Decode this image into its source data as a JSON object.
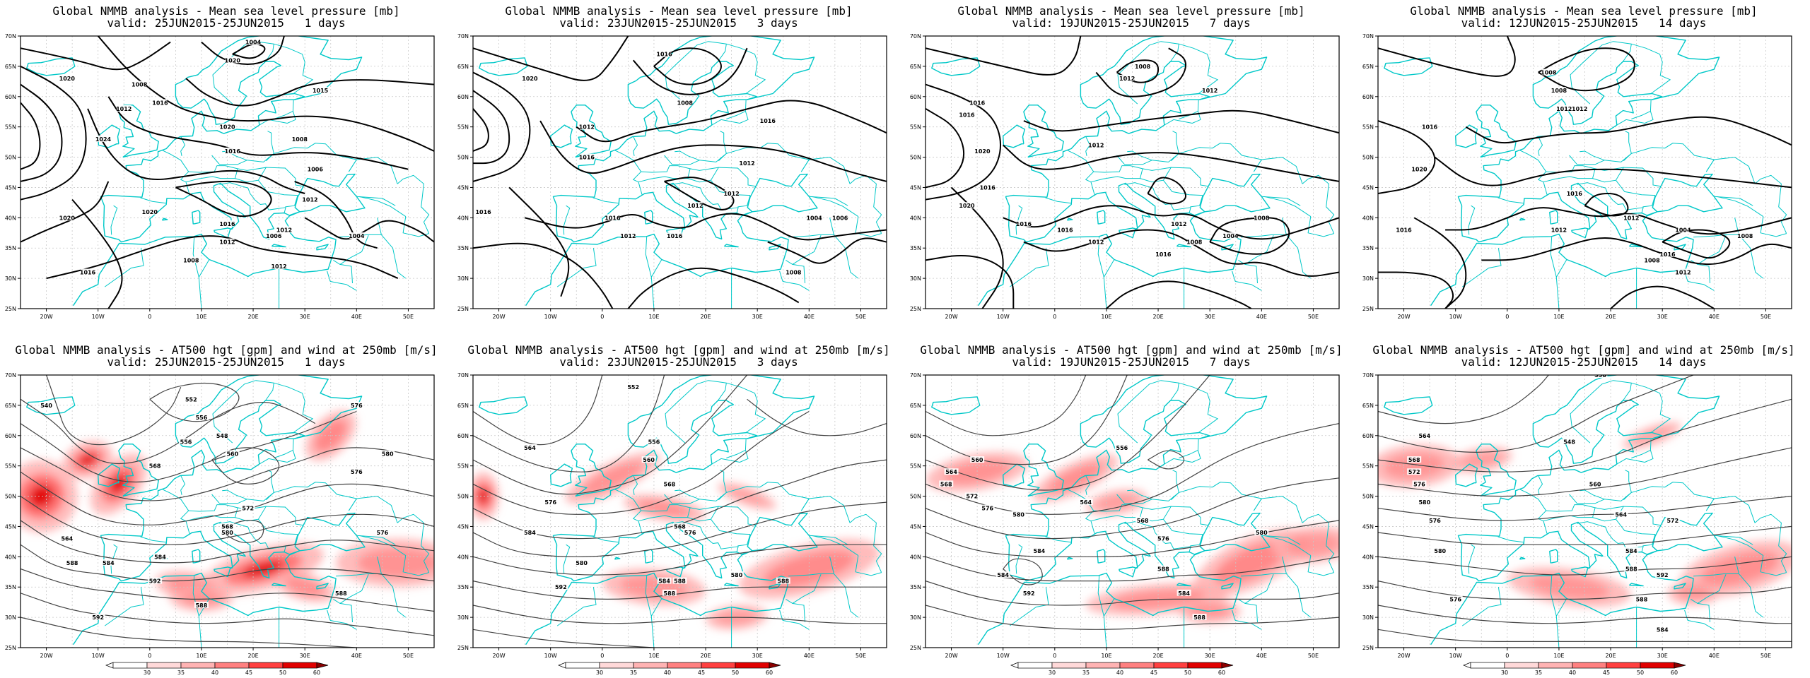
{
  "panels": [
    {
      "title": "Global NMMB analysis - Mean sea level pressure [mb]",
      "valid": "valid: 25JUN2015-25JUN2015   1 days",
      "type": "mslp",
      "labels": [
        "1020",
        "1004",
        "1020",
        "1008",
        "1012",
        "1016",
        "1015",
        "1020",
        "1024",
        "1016",
        "1008",
        "1006",
        "1012",
        "1006",
        "1012",
        "1004",
        "1020",
        "1020",
        "1016",
        "1012",
        "1008",
        "1016",
        "1012"
      ]
    },
    {
      "title": "Global NMMB analysis - Mean sea level pressure [mb]",
      "valid": "valid: 23JUN2015-25JUN2015   3 days",
      "type": "mslp",
      "labels": [
        "1020",
        "1016",
        "1008",
        "1012",
        "1016",
        "1016",
        "1012",
        "1012",
        "1016",
        "1016",
        "1012",
        "1004",
        "1006",
        "1016",
        "1012",
        "1008"
      ]
    },
    {
      "title": "Global NMMB analysis - Mean sea level pressure [mb]",
      "valid": "valid: 19JUN2015-25JUN2015   7 days",
      "type": "mslp",
      "labels": [
        "1016",
        "1012",
        "1016",
        "1008",
        "1012",
        "1020",
        "1012",
        "1016",
        "1020",
        "1016",
        "1016",
        "1012",
        "1004",
        "1008",
        "1016",
        "1008",
        "1012"
      ]
    },
    {
      "title": "Global NMMB analysis - Mean sea level pressure [mb]",
      "valid": "valid: 12JUN2015-25JUN2015   14 days",
      "type": "mslp",
      "labels": [
        "1008",
        "1012",
        "1016",
        "1008",
        "1012",
        "1020",
        "1016",
        "1012",
        "1016",
        "1012",
        "1004",
        "1008",
        "1016",
        "1008",
        "1012"
      ]
    },
    {
      "title": "Global NMMB analysis - AT500 hgt [gpm] and wind at 250mb [m/s]",
      "valid": "valid: 25JUN2015-25JUN2015   1 days",
      "type": "z500",
      "labels": [
        "540",
        "552",
        "556",
        "548",
        "560",
        "576",
        "556",
        "580",
        "568",
        "576",
        "564",
        "572",
        "580",
        "584",
        "588",
        "568",
        "576",
        "584",
        "592",
        "588",
        "592",
        "588"
      ]
    },
    {
      "title": "Global NMMB analysis - AT500 hgt [gpm] and wind at 250mb [m/s]",
      "valid": "valid: 23JUN2015-25JUN2015   3 days",
      "type": "z500",
      "labels": [
        "552",
        "564",
        "556",
        "568",
        "576",
        "580",
        "560",
        "568",
        "576",
        "584",
        "580",
        "588",
        "592",
        "584",
        "588",
        "580",
        "588"
      ]
    },
    {
      "title": "Global NMMB analysis - AT500 hgt [gpm] and wind at 250mb [m/s]",
      "valid": "valid: 19JUN2015-25JUN2015   7 days",
      "type": "z500",
      "labels": [
        "560",
        "564",
        "568",
        "572",
        "576",
        "580",
        "556",
        "564",
        "568",
        "576",
        "580",
        "584",
        "584",
        "588",
        "584",
        "592",
        "588"
      ]
    },
    {
      "title": "Global NMMB analysis - AT500 hgt [gpm] and wind at 250mb [m/s]",
      "valid": "valid: 12JUN2015-25JUN2015   14 days",
      "type": "z500",
      "labels": [
        "556",
        "564",
        "568",
        "572",
        "576",
        "580",
        "548",
        "560",
        "564",
        "572",
        "576",
        "580",
        "584",
        "588",
        "592",
        "588",
        "576",
        "584"
      ]
    }
  ],
  "lon_ticks": [
    "20W",
    "10W",
    "0",
    "10E",
    "20E",
    "30E",
    "40E",
    "50E"
  ],
  "lat_ticks": [
    "70N",
    "65N",
    "60N",
    "55N",
    "50N",
    "45N",
    "40N",
    "35N",
    "30N",
    "25N"
  ],
  "colorbar": {
    "values": [
      "30",
      "35",
      "40",
      "45",
      "50",
      "60"
    ],
    "colors": [
      "#ffffff",
      "#ffd9d9",
      "#ffb3b3",
      "#ff8080",
      "#ff4040",
      "#e00000",
      "#8b0000"
    ]
  },
  "colors": {
    "coast": "#00c8c8",
    "contour_mslp": "#000000",
    "contour_z500": "#444444",
    "grid": "#c8c8c8"
  }
}
